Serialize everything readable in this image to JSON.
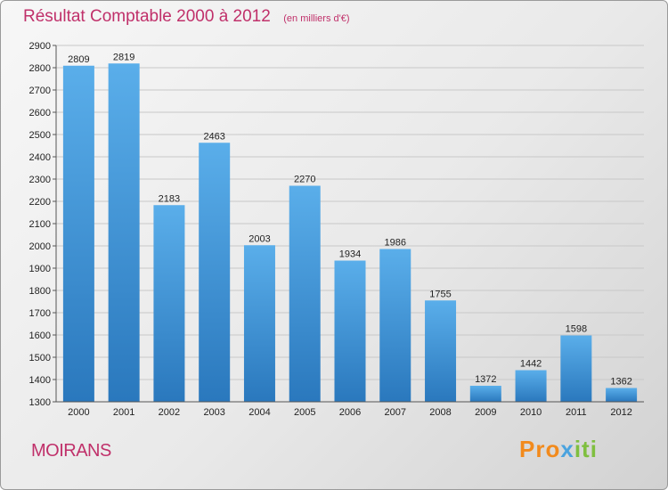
{
  "chart_data": {
    "type": "bar",
    "title": "Résultat Comptable 2000 à 2012",
    "subtitle": "(en milliers d'€)",
    "categories": [
      "2000",
      "2001",
      "2002",
      "2003",
      "2004",
      "2005",
      "2006",
      "2007",
      "2008",
      "2009",
      "2010",
      "2011",
      "2012"
    ],
    "values": [
      2809,
      2819,
      2183,
      2463,
      2003,
      2270,
      1934,
      1986,
      1755,
      1372,
      1442,
      1598,
      1362
    ],
    "ylim": [
      1300,
      2900
    ],
    "yticks": [
      1300,
      1400,
      1500,
      1600,
      1700,
      1800,
      1900,
      2000,
      2100,
      2200,
      2300,
      2400,
      2500,
      2600,
      2700,
      2800,
      2900
    ],
    "grid": true,
    "bar_color": "#3d8fd6",
    "title_color": "#c0306a"
  },
  "location": "MOIRANS",
  "logo": {
    "part1": "Pro",
    "part2": "x",
    "part3": "iti"
  }
}
